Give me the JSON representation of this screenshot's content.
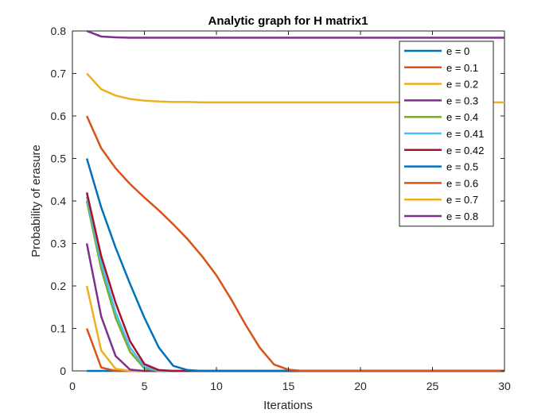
{
  "chart_data": {
    "type": "line",
    "title": "Analytic graph for H matrix1",
    "xlabel": "Iterations",
    "ylabel": "Probability of erasure",
    "xlim": [
      0,
      30
    ],
    "ylim": [
      0,
      0.8
    ],
    "xticks": [
      0,
      5,
      10,
      15,
      20,
      25,
      30
    ],
    "yticks": [
      0,
      0.1,
      0.2,
      0.3,
      0.4,
      0.5,
      0.6,
      0.7,
      0.8
    ],
    "xtick_labels": [
      "0",
      "5",
      "10",
      "15",
      "20",
      "25",
      "30"
    ],
    "ytick_labels": [
      "0",
      "0.1",
      "0.2",
      "0.3",
      "0.4",
      "0.5",
      "0.6",
      "0.7",
      "0.8"
    ],
    "grid": false,
    "legend_position": "top-right",
    "x": [
      1,
      2,
      3,
      4,
      5,
      6,
      7,
      8,
      9,
      10,
      11,
      12,
      13,
      14,
      15,
      16,
      17,
      18,
      19,
      20,
      21,
      22,
      23,
      24,
      25,
      26,
      27,
      28,
      29,
      30
    ],
    "series": [
      {
        "name": "e = 0",
        "color": "#0072BD",
        "values": [
          0,
          0,
          0,
          0,
          0,
          0,
          0,
          0,
          0,
          0,
          0,
          0,
          0,
          0,
          0,
          0,
          0,
          0,
          0,
          0,
          0,
          0,
          0,
          0,
          0,
          0,
          0,
          0,
          0,
          0
        ]
      },
      {
        "name": "e = 0.1",
        "color": "#D95319",
        "values": [
          0.1,
          0.008,
          0,
          0,
          0,
          0,
          0,
          0,
          0,
          0,
          0,
          0,
          0,
          0,
          0,
          0,
          0,
          0,
          0,
          0,
          0,
          0,
          0,
          0,
          0,
          0,
          0,
          0,
          0,
          0
        ]
      },
      {
        "name": "e = 0.2",
        "color": "#EDB120",
        "values": [
          0.2,
          0.048,
          0.005,
          0,
          0,
          0,
          0,
          0,
          0,
          0,
          0,
          0,
          0,
          0,
          0,
          0,
          0,
          0,
          0,
          0,
          0,
          0,
          0,
          0,
          0,
          0,
          0,
          0,
          0,
          0
        ]
      },
      {
        "name": "e = 0.3",
        "color": "#7E2F8E",
        "values": [
          0.3,
          0.128,
          0.035,
          0.003,
          0,
          0,
          0,
          0,
          0,
          0,
          0,
          0,
          0,
          0,
          0,
          0,
          0,
          0,
          0,
          0,
          0,
          0,
          0,
          0,
          0,
          0,
          0,
          0,
          0,
          0
        ]
      },
      {
        "name": "e = 0.4",
        "color": "#77AC30",
        "values": [
          0.4,
          0.24,
          0.125,
          0.045,
          0.006,
          0,
          0,
          0,
          0,
          0,
          0,
          0,
          0,
          0,
          0,
          0,
          0,
          0,
          0,
          0,
          0,
          0,
          0,
          0,
          0,
          0,
          0,
          0,
          0,
          0
        ]
      },
      {
        "name": "e = 0.41",
        "color": "#4DBEEE",
        "values": [
          0.41,
          0.255,
          0.138,
          0.055,
          0.01,
          0,
          0,
          0,
          0,
          0,
          0,
          0,
          0,
          0,
          0,
          0,
          0,
          0,
          0,
          0,
          0,
          0,
          0,
          0,
          0,
          0,
          0,
          0,
          0,
          0
        ]
      },
      {
        "name": "e = 0.42",
        "color": "#A2142F",
        "values": [
          0.42,
          0.27,
          0.16,
          0.07,
          0.016,
          0.002,
          0,
          0,
          0,
          0,
          0,
          0,
          0,
          0,
          0,
          0,
          0,
          0,
          0,
          0,
          0,
          0,
          0,
          0,
          0,
          0,
          0,
          0,
          0,
          0
        ]
      },
      {
        "name": "e = 0.5",
        "color": "#0072BD",
        "values": [
          0.5,
          0.385,
          0.29,
          0.205,
          0.125,
          0.055,
          0.012,
          0.002,
          0,
          0,
          0,
          0,
          0,
          0,
          0,
          0,
          0,
          0,
          0,
          0,
          0,
          0,
          0,
          0,
          0,
          0,
          0,
          0,
          0,
          0
        ]
      },
      {
        "name": "e = 0.6",
        "color": "#D95319",
        "values": [
          0.6,
          0.524,
          0.477,
          0.44,
          0.408,
          0.378,
          0.345,
          0.31,
          0.27,
          0.225,
          0.17,
          0.11,
          0.055,
          0.015,
          0.003,
          0,
          0,
          0,
          0,
          0,
          0,
          0,
          0,
          0,
          0,
          0,
          0,
          0,
          0,
          0
        ]
      },
      {
        "name": "e = 0.7",
        "color": "#EDB120",
        "values": [
          0.7,
          0.663,
          0.648,
          0.64,
          0.636,
          0.634,
          0.633,
          0.633,
          0.632,
          0.632,
          0.632,
          0.632,
          0.632,
          0.632,
          0.632,
          0.632,
          0.632,
          0.632,
          0.632,
          0.632,
          0.632,
          0.632,
          0.632,
          0.632,
          0.632,
          0.632,
          0.632,
          0.632,
          0.632,
          0.632
        ]
      },
      {
        "name": "e = 0.8",
        "color": "#7E2F8E",
        "values": [
          0.8,
          0.787,
          0.785,
          0.784,
          0.784,
          0.784,
          0.784,
          0.784,
          0.784,
          0.784,
          0.784,
          0.784,
          0.784,
          0.784,
          0.784,
          0.784,
          0.784,
          0.784,
          0.784,
          0.784,
          0.784,
          0.784,
          0.784,
          0.784,
          0.784,
          0.784,
          0.784,
          0.784,
          0.784,
          0.784
        ]
      }
    ]
  }
}
